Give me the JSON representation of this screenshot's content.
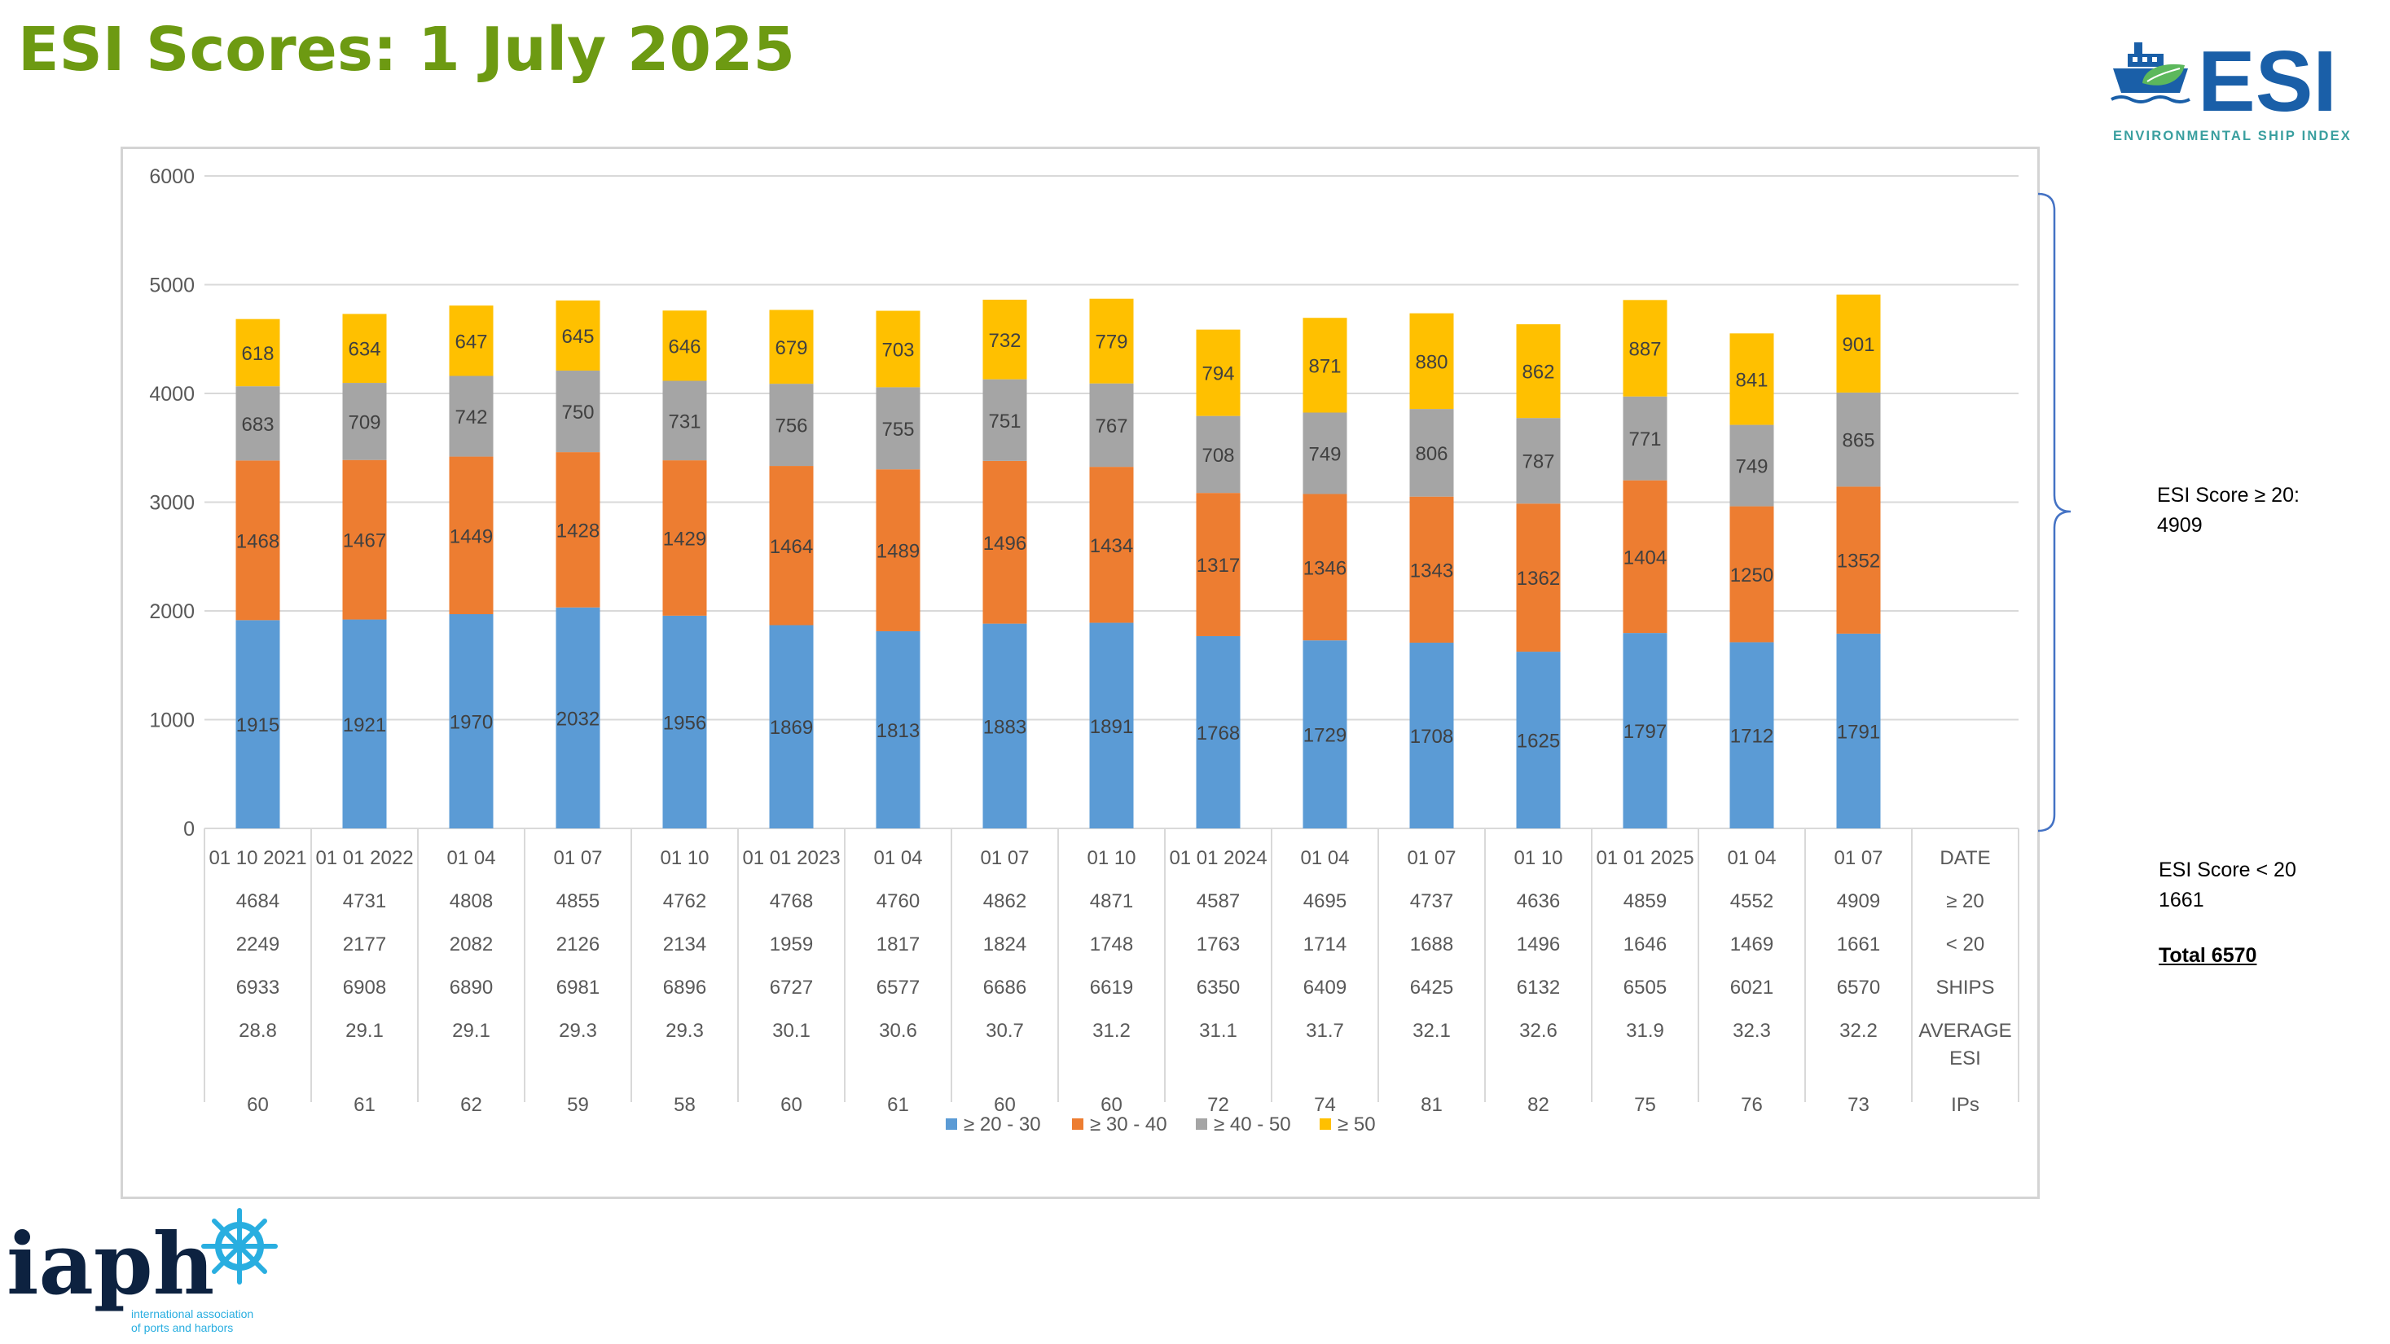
{
  "page": {
    "title": "ESI Scores: 1 July 2025"
  },
  "logos": {
    "esi": {
      "wordmark": "ESI",
      "tagline": "ENVIRONMENTAL SHIP INDEX",
      "colors": {
        "navy": "#1a5fa8",
        "leaf": "#5cb85c",
        "tagline": "#3a9f9f"
      }
    },
    "iaph": {
      "wordmark": "iaph",
      "tagline_line1": "international association",
      "tagline_line2": "of ports and harbors",
      "colors": {
        "text": "#0d2240",
        "wheel": "#29aee0"
      }
    }
  },
  "chart_data": {
    "type": "bar",
    "stacked": true,
    "categories": [
      "01 10 2021",
      "01 01 2022",
      "01 04",
      "01 07",
      "01 10",
      "01 01 2023",
      "01 04",
      "01 07",
      "01 10",
      "01 01 2024",
      "01 04",
      "01 07",
      "01 10",
      "01 01 2025",
      "01 04",
      "01 07"
    ],
    "ylim": [
      0,
      6000
    ],
    "yticks": [
      0,
      1000,
      2000,
      3000,
      4000,
      5000,
      6000
    ],
    "grid": true,
    "legend_position": "bottom",
    "series": [
      {
        "name": "≥ 20 - 30",
        "color": "#5b9bd5",
        "values": [
          1915,
          1921,
          1970,
          2032,
          1956,
          1869,
          1813,
          1883,
          1891,
          1768,
          1729,
          1708,
          1625,
          1797,
          1712,
          1791
        ]
      },
      {
        "name": "≥  30 - 40",
        "color": "#ed7d31",
        "values": [
          1468,
          1467,
          1449,
          1428,
          1429,
          1464,
          1489,
          1496,
          1434,
          1317,
          1346,
          1343,
          1362,
          1404,
          1250,
          1352
        ]
      },
      {
        "name": "≥  40 - 50",
        "color": "#a5a5a5",
        "values": [
          683,
          709,
          742,
          750,
          731,
          756,
          755,
          751,
          767,
          708,
          749,
          806,
          787,
          771,
          749,
          865
        ]
      },
      {
        "name": "≥  50",
        "color": "#ffc000",
        "values": [
          618,
          634,
          647,
          645,
          646,
          679,
          703,
          732,
          779,
          794,
          871,
          880,
          862,
          887,
          841,
          901
        ]
      }
    ],
    "table": {
      "header_label": "DATE",
      "rows": [
        {
          "label": "≥ 20",
          "values": [
            "4684",
            "4731",
            "4808",
            "4855",
            "4762",
            "4768",
            "4760",
            "4862",
            "4871",
            "4587",
            "4695",
            "4737",
            "4636",
            "4859",
            "4552",
            "4909"
          ]
        },
        {
          "label": "< 20",
          "values": [
            "2249",
            "2177",
            "2082",
            "2126",
            "2134",
            "1959",
            "1817",
            "1824",
            "1748",
            "1763",
            "1714",
            "1688",
            "1496",
            "1646",
            "1469",
            "1661"
          ]
        },
        {
          "label": "SHIPS",
          "values": [
            "6933",
            "6908",
            "6890",
            "6981",
            "6896",
            "6727",
            "6577",
            "6686",
            "6619",
            "6350",
            "6409",
            "6425",
            "6132",
            "6505",
            "6021",
            "6570"
          ]
        },
        {
          "label": "AVERAGE",
          "label2": "ESI",
          "values": [
            "28.8",
            "29.1",
            "29.1",
            "29.3",
            "29.3",
            "30.1",
            "30.6",
            "30.7",
            "31.2",
            "31.1",
            "31.7",
            "32.1",
            "32.6",
            "31.9",
            "32.3",
            "32.2"
          ]
        },
        {
          "label": "IPs",
          "values": [
            "60",
            "61",
            "62",
            "59",
            "58",
            "60",
            "61",
            "60",
            "60",
            "72",
            "74",
            "81",
            "82",
            "75",
            "76",
            "73"
          ]
        }
      ]
    }
  },
  "notes": {
    "ge20_line1": "ESI Score  ≥ 20:",
    "ge20_line2": "4909",
    "lt20_line1": "ESI Score < 20",
    "lt20_line2": "1661",
    "total": "Total 6570"
  }
}
